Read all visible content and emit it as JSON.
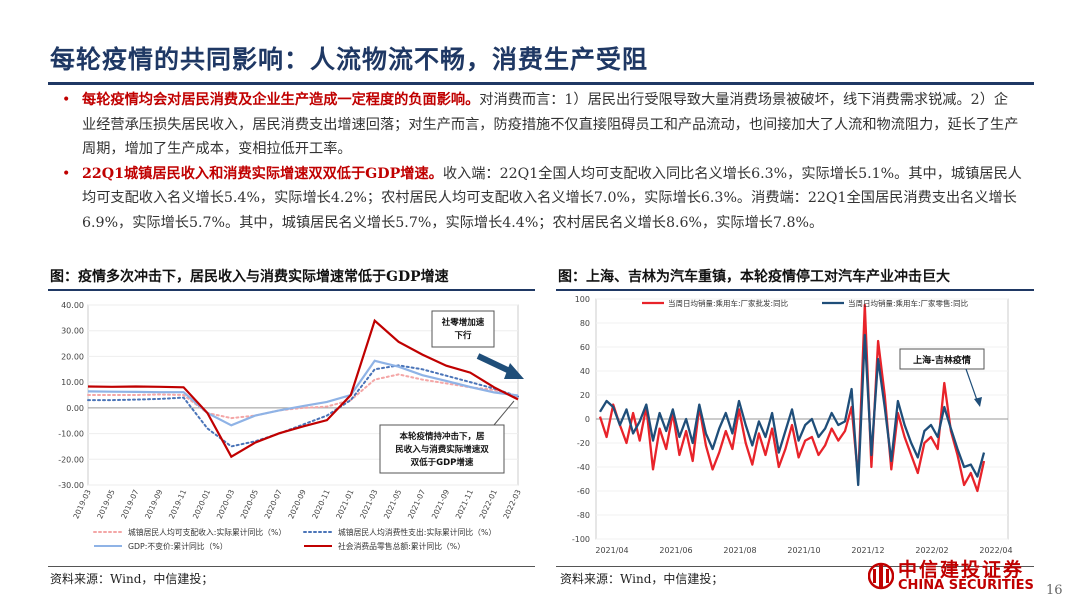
{
  "title": "每轮疫情的共同影响：人流物流不畅，消费生产受阻",
  "bullets": [
    {
      "marker": "•",
      "highlight": "每轮疫情均会对居民消费及企业生产造成一定程度的负面影响。",
      "text": "对消费而言：1）居民出行受限导致大量消费场景被破坏，线下消费需求锐减。2）企业经营承压损失居民收入，居民消费支出增速回落；对生产而言，防疫措施不仅直接阻碍员工和产品流动，也间接加大了人流和物流阻力，延长了生产周期，增加了生产成本，变相拉低开工率。"
    },
    {
      "marker": "•",
      "highlight": "22Q1城镇居民收入和消费实际增速双双低于GDP增速。",
      "text": "收入端：22Q1全国人均可支配收入同比名义增长6.3%，实际增长5.1%。其中，城镇居民人均可支配收入名义增长5.4%，实际增长4.2%；农村居民人均可支配收入名义增长7.0%，实际增长6.3%。消费端：22Q1全国居民消费支出名义增长6.9%，实际增长5.7%。其中，城镇居民名义增长5.7%，实际增长4.4%；农村居民名义增长8.6%，实际增长7.8%。"
    }
  ],
  "fig_left": {
    "title": "图：疫情多次冲击下，居民收入与消费实际增速常低于GDP增速",
    "source": "资料来源：Wind，中信建投；",
    "annotation_top": [
      "社零增加速",
      "下行"
    ],
    "annotation_bottom": [
      "本轮疫情持冲击下，居",
      "民收入与消费实际增速双",
      "双低于GDP增速"
    ]
  },
  "fig_right": {
    "title": "图：上海、吉林为汽车重镇，本轮疫情停工对汽车产业冲击巨大",
    "source": "资料来源：Wind，中信建投；",
    "annotation": "上海-吉林疫情"
  },
  "logo": {
    "cn": "中信建投证券",
    "en": "CHINA SECURITIES"
  },
  "page_number": "16",
  "colors": {
    "title": "#1f3864",
    "highlight": "#c00000",
    "pink": "#f4a6a6",
    "dot_blue": "#4a74b8",
    "light_blue": "#8fb3e6",
    "red": "#c00000",
    "navy": "#1f4e79",
    "bright_red": "#e8232a"
  },
  "chart_data": [
    {
      "type": "line",
      "x": [
        "2019-03",
        "2019-05",
        "2019-07",
        "2019-09",
        "2019-11",
        "2020-01",
        "2020-03",
        "2020-05",
        "2020-07",
        "2020-09",
        "2020-11",
        "2021-01",
        "2021-03",
        "2021-05",
        "2021-07",
        "2021-09",
        "2021-11",
        "2022-01",
        "2022-03"
      ],
      "ylim": [
        -30,
        40
      ],
      "yticks": [
        "40.00",
        "30.00",
        "20.00",
        "10.00",
        "0.00",
        "-10.00",
        "-20.00",
        "-30.00"
      ],
      "series": [
        {
          "name": "城镇居民人均可支配收入:实际累计同比（%）",
          "color": "#f4a6a6",
          "style": "dotted",
          "values": [
            5.0,
            5.0,
            5.0,
            5.2,
            5.0,
            -2.0,
            -4.0,
            -3.0,
            -1.0,
            0.0,
            0.5,
            3.0,
            11.0,
            13.0,
            11.0,
            9.5,
            8.0,
            7.0,
            4.2
          ]
        },
        {
          "name": "城镇居民人均消费性支出:实际累计同比（%）",
          "color": "#4a74b8",
          "style": "dotted",
          "values": [
            3.0,
            3.0,
            3.2,
            3.5,
            4.0,
            -8.0,
            -15.0,
            -13.0,
            -10.0,
            -6.5,
            -3.0,
            3.0,
            15.0,
            16.5,
            15.0,
            12.5,
            10.0,
            7.5,
            4.4
          ]
        },
        {
          "name": "GDP:不变价:累计同比（%）",
          "color": "#8fb3e6",
          "style": "solid",
          "values": [
            6.4,
            6.3,
            6.2,
            6.1,
            6.1,
            -2.0,
            -6.8,
            -3.0,
            -1.0,
            0.7,
            2.3,
            5.0,
            18.3,
            16.0,
            12.7,
            10.5,
            8.1,
            6.0,
            4.8
          ]
        },
        {
          "name": "社会消费品零售总额:累计同比（%）",
          "color": "#c00000",
          "style": "solid",
          "values": [
            8.3,
            8.2,
            8.3,
            8.2,
            8.0,
            -2.0,
            -19.0,
            -13.5,
            -9.9,
            -7.2,
            -4.8,
            5.0,
            33.9,
            25.7,
            20.7,
            16.4,
            13.7,
            8.0,
            3.3
          ]
        }
      ]
    },
    {
      "type": "line",
      "x_ticks": [
        "2021/04",
        "2021/06",
        "2021/08",
        "2021/10",
        "2021/12",
        "2022/02",
        "2022/04"
      ],
      "ylim": [
        -100,
        100
      ],
      "yticks": [
        "100",
        "80",
        "60",
        "40",
        "20",
        "0",
        "-20",
        "-40",
        "-60",
        "-80",
        "-100"
      ],
      "series": [
        {
          "name": "当周日均销量:乘用车:厂家批发:同比",
          "color": "#e8232a",
          "values": [
            2,
            -15,
            12,
            -5,
            -20,
            5,
            -18,
            10,
            -42,
            -8,
            -25,
            5,
            -30,
            -10,
            -35,
            10,
            -22,
            -42,
            -28,
            -10,
            -25,
            8,
            -20,
            -38,
            -12,
            -30,
            -8,
            -40,
            -25,
            -5,
            -32,
            -18,
            -15,
            -30,
            -22,
            -8,
            -18,
            -10,
            10,
            -50,
            95,
            -40,
            65,
            20,
            -42,
            5,
            -15,
            -30,
            -45,
            -20,
            -15,
            -25,
            30,
            -10,
            -30,
            -55,
            -45,
            -60,
            -35
          ]
        },
        {
          "name": "当周日均销量:乘用车:厂家零售:同比",
          "color": "#1f4e79",
          "values": [
            6,
            15,
            10,
            -5,
            8,
            -12,
            -2,
            12,
            -18,
            5,
            -10,
            8,
            -15,
            0,
            -20,
            12,
            -12,
            -25,
            -8,
            5,
            -12,
            15,
            -5,
            -22,
            -2,
            -15,
            5,
            -28,
            -10,
            8,
            -18,
            -5,
            0,
            -15,
            -8,
            5,
            -5,
            -2,
            25,
            -55,
            70,
            -30,
            50,
            10,
            -35,
            15,
            -5,
            -20,
            -32,
            -10,
            -5,
            -15,
            10,
            -8,
            -25,
            -40,
            -38,
            -48,
            -28
          ]
        }
      ]
    }
  ]
}
